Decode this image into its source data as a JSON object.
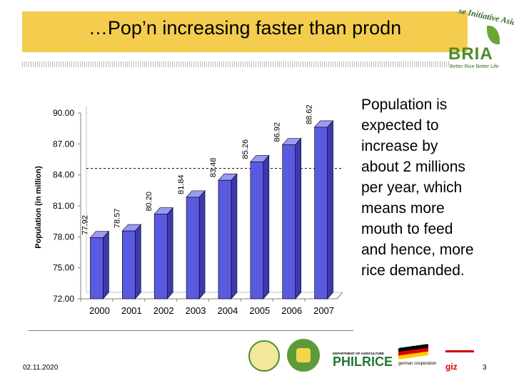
{
  "slide": {
    "title": "…Pop’n increasing faster than prodn",
    "side_text": "Population is expected to increase by about 2 millions per year, which means more mouth to feed and hence, more rice demanded.",
    "date": "02.11.2020",
    "page_number": "3"
  },
  "logos": {
    "bria_ribbon": "se Initiative Asia",
    "bria_word": "BRIA",
    "bria_sub": "Better Rice Better Life",
    "philrice_dept": "DEPARTMENT OF AGRICULTURE",
    "philrice_name": "PHILRICE",
    "german_text": "german cooperation",
    "giz_text": "giz"
  },
  "colors": {
    "title_bar": "#f4cd4f",
    "bar_fill": "#5a5ae0",
    "bar_side": "#3a3ab0",
    "bar_top": "#9a9af2"
  },
  "chart_data": {
    "type": "bar",
    "categories": [
      "2000",
      "2001",
      "2002",
      "2003",
      "2004",
      "2005",
      "2006",
      "2007"
    ],
    "values": [
      77.92,
      78.57,
      80.2,
      81.84,
      83.48,
      85.26,
      86.92,
      88.62
    ],
    "value_labels": [
      "77.92",
      "78.57",
      "80.20",
      "81.84",
      "83.48",
      "85.26",
      "86.92",
      "88.62"
    ],
    "title": "",
    "xlabel": "",
    "ylabel": "Population (in million)",
    "ylim": [
      72,
      90
    ],
    "yticks": [
      72,
      75,
      78,
      81,
      84,
      87,
      90
    ],
    "ytick_labels": [
      "72.00",
      "75.00",
      "78.00",
      "81.00",
      "84.00",
      "87.00",
      "90.00"
    ],
    "reference_line": 84,
    "grid": false
  }
}
